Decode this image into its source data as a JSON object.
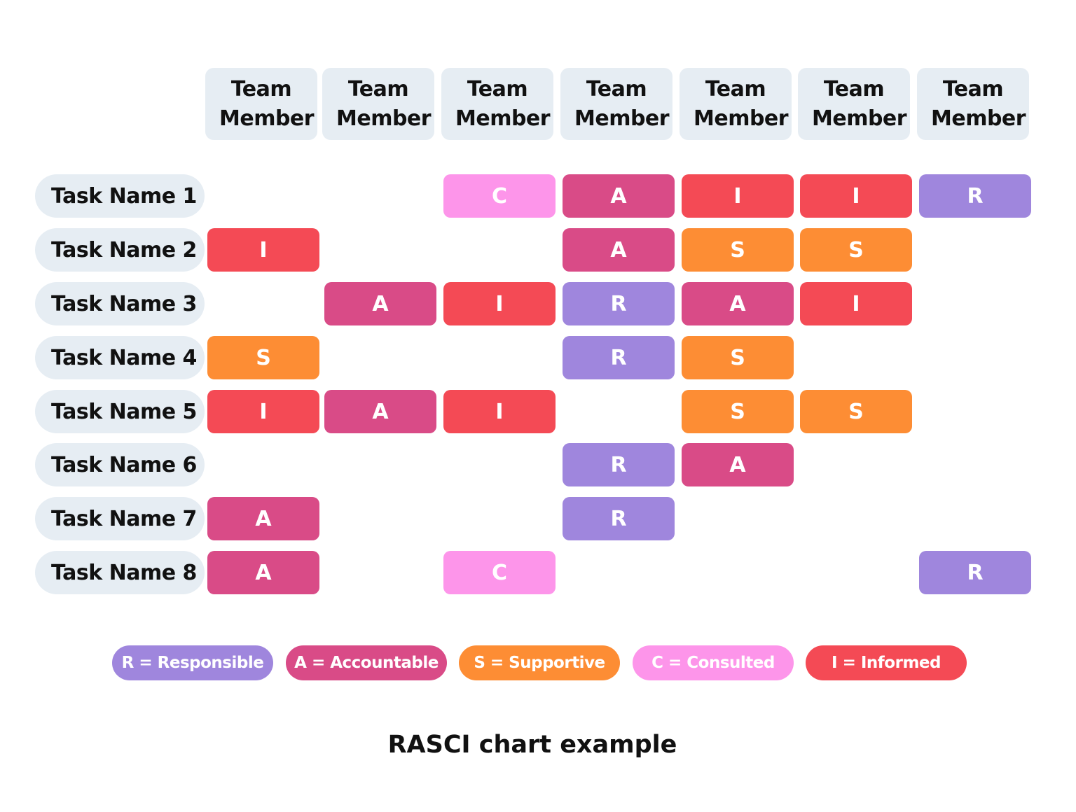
{
  "title": "RASCI chart example",
  "colors": {
    "R": "#9f86dd",
    "A": "#d94b87",
    "S": "#fd8d34",
    "C": "#fd95ea",
    "I": "#f44a55"
  },
  "columns": [
    "Team Member",
    "Team Member",
    "Team Member",
    "Team Member",
    "Team Member",
    "Team Member",
    "Team Member"
  ],
  "rows": [
    {
      "task": "Task Name 1",
      "cells": [
        "",
        "",
        "C",
        "A",
        "I",
        "I",
        "R"
      ]
    },
    {
      "task": "Task Name 2",
      "cells": [
        "I",
        "",
        "",
        "A",
        "S",
        "S",
        ""
      ]
    },
    {
      "task": "Task Name 3",
      "cells": [
        "",
        "A",
        "I",
        "R",
        "A",
        "I",
        ""
      ]
    },
    {
      "task": "Task Name 4",
      "cells": [
        "S",
        "",
        "",
        "R",
        "S",
        "",
        ""
      ]
    },
    {
      "task": "Task Name 5",
      "cells": [
        "I",
        "A",
        "I",
        "",
        "S",
        "S",
        ""
      ]
    },
    {
      "task": "Task Name 6",
      "cells": [
        "",
        "",
        "",
        "R",
        "A",
        "",
        ""
      ]
    },
    {
      "task": "Task Name 7",
      "cells": [
        "A",
        "",
        "",
        "R",
        "",
        "",
        ""
      ]
    },
    {
      "task": "Task Name 8",
      "cells": [
        "A",
        "",
        "C",
        "",
        "",
        "",
        "R"
      ]
    }
  ],
  "legend": [
    {
      "key": "R",
      "label": "R = Responsible"
    },
    {
      "key": "A",
      "label": "A = Accountable"
    },
    {
      "key": "S",
      "label": "S = Supportive"
    },
    {
      "key": "C",
      "label": "C = Consulted"
    },
    {
      "key": "I",
      "label": "I = Informed"
    }
  ]
}
